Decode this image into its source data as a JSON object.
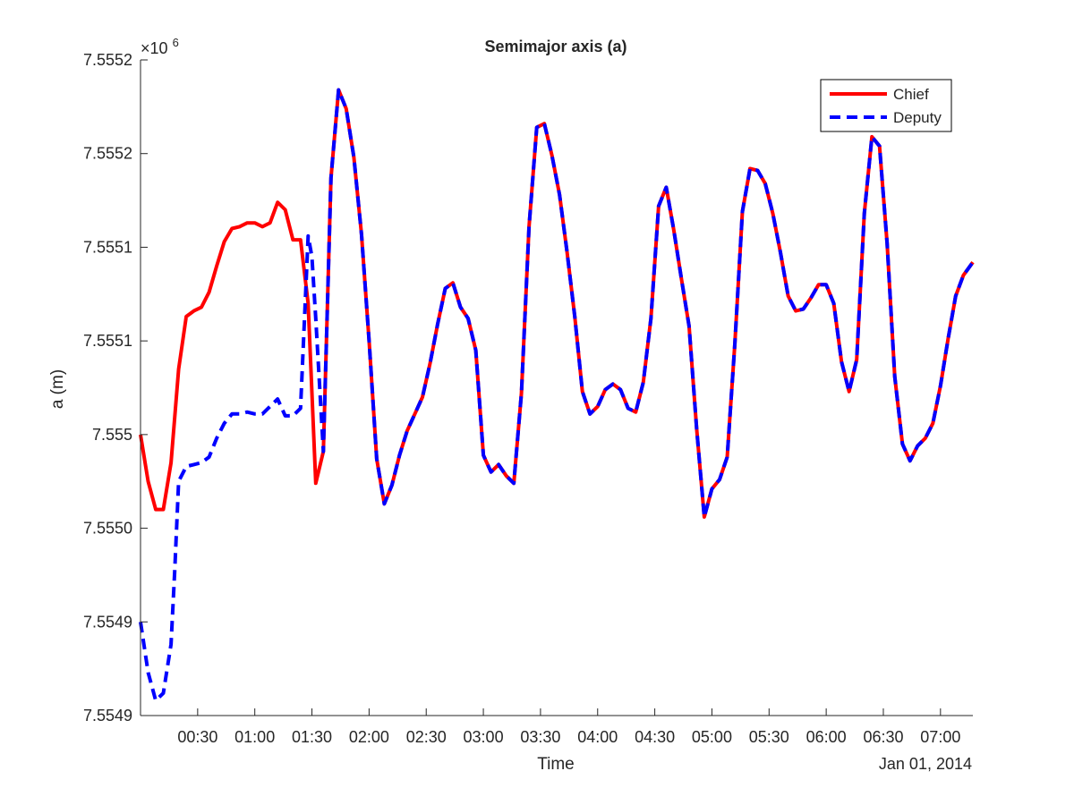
{
  "chart_data": {
    "type": "line",
    "title": "Semimajor axis (a)",
    "xlabel": "Time",
    "ylabel": "a (m)",
    "x_date_label": "Jan 01, 2014",
    "exponent_label": "×10",
    "exponent_power": "6",
    "x_unit": "minutes after 00:00",
    "xlim": [
      0,
      437
    ],
    "ylim": [
      7554850,
      7555200
    ],
    "x_tick_values": [
      30,
      60,
      90,
      120,
      150,
      180,
      210,
      240,
      270,
      300,
      330,
      360,
      390,
      420
    ],
    "x_tick_labels": [
      "00:30",
      "01:00",
      "01:30",
      "02:00",
      "02:30",
      "03:00",
      "03:30",
      "04:00",
      "04:30",
      "05:00",
      "05:30",
      "06:00",
      "06:30",
      "07:00"
    ],
    "y_tick_values": [
      7554850,
      7554900,
      7554950,
      7555000,
      7555050,
      7555100,
      7555150,
      7555200
    ],
    "y_tick_labels": [
      "7.5549",
      "7.5549",
      "7.5550",
      "7.555",
      "7.5551",
      "7.5551",
      "7.5552",
      "7.5552"
    ],
    "grid": false,
    "legend_position": "top-right",
    "series": [
      {
        "name": "Chief",
        "color": "#ff0000",
        "style": "solid",
        "x": [
          0,
          4,
          8,
          12,
          16,
          20,
          24,
          28,
          32,
          36,
          40,
          44,
          48,
          52,
          56,
          60,
          64,
          68,
          72,
          76,
          80,
          84,
          88,
          92,
          96,
          100,
          104,
          108,
          112,
          116,
          120,
          124,
          128,
          132,
          136,
          140,
          144,
          148,
          152,
          156,
          160,
          164,
          168,
          172,
          176,
          180,
          184,
          188,
          192,
          196,
          200,
          204,
          208,
          212,
          216,
          220,
          224,
          228,
          232,
          236,
          240,
          244,
          248,
          252,
          256,
          260,
          264,
          268,
          272,
          276,
          280,
          284,
          288,
          292,
          296,
          300,
          304,
          308,
          312,
          316,
          320,
          324,
          328,
          332,
          336,
          340,
          344,
          348,
          352,
          356,
          360,
          364,
          368,
          372,
          376,
          380,
          384,
          388,
          392,
          396,
          400,
          404,
          408,
          412,
          416,
          420,
          424,
          428,
          432,
          437
        ],
        "y": [
          7555000,
          7554975,
          7554960,
          7554960,
          7554985,
          7555035,
          7555063,
          7555066,
          7555068,
          7555076,
          7555090,
          7555103,
          7555110,
          7555111,
          7555113,
          7555113,
          7555111,
          7555113,
          7555124,
          7555120,
          7555104,
          7555104,
          7555070,
          7554974,
          7554991,
          7555137,
          7555184,
          7555174,
          7555148,
          7555107,
          7555050,
          7554987,
          7554963,
          7554973,
          7554989,
          7555002,
          7555011,
          7555020,
          7555038,
          7555059,
          7555078,
          7555081,
          7555068,
          7555062,
          7555045,
          7554989,
          7554980,
          7554984,
          7554978,
          7554974,
          7555022,
          7555111,
          7555164,
          7555166,
          7555149,
          7555128,
          7555097,
          7555063,
          7555023,
          7555011,
          7555015,
          7555024,
          7555027,
          7555024,
          7555014,
          7555012,
          7555028,
          7555062,
          7555122,
          7555132,
          7555109,
          7555083,
          7555058,
          7555003,
          7554956,
          7554971,
          7554976,
          7554988,
          7555048,
          7555119,
          7555142,
          7555141,
          7555134,
          7555118,
          7555097,
          7555074,
          7555066,
          7555067,
          7555073,
          7555080,
          7555080,
          7555070,
          7555039,
          7555023,
          7555040,
          7555118,
          7555159,
          7555154,
          7555102,
          7555031,
          7554995,
          7554986,
          7554994,
          7554998,
          7555006,
          7555026,
          7555051,
          7555074,
          7555085,
          7555092
        ]
      },
      {
        "name": "Deputy",
        "color": "#0000ff",
        "style": "dashed",
        "x": [
          0,
          4,
          8,
          12,
          16,
          18,
          20,
          24,
          28,
          32,
          36,
          40,
          44,
          48,
          52,
          56,
          60,
          64,
          68,
          72,
          76,
          80,
          84,
          88,
          90,
          92,
          96,
          100,
          104,
          108,
          112,
          116,
          120,
          124,
          128,
          132,
          136,
          140,
          144,
          148,
          152,
          156,
          160,
          164,
          168,
          172,
          176,
          180,
          184,
          188,
          192,
          196,
          200,
          204,
          208,
          212,
          216,
          220,
          224,
          228,
          232,
          236,
          240,
          244,
          248,
          252,
          256,
          260,
          264,
          268,
          272,
          276,
          280,
          284,
          288,
          292,
          296,
          300,
          304,
          308,
          312,
          316,
          320,
          324,
          328,
          332,
          336,
          340,
          344,
          348,
          352,
          356,
          360,
          364,
          368,
          372,
          376,
          380,
          384,
          388,
          392,
          396,
          400,
          404,
          408,
          412,
          416,
          420,
          424,
          428,
          432,
          437
        ],
        "y": [
          7554900,
          7554873,
          7554858,
          7554862,
          7554888,
          7554928,
          7554975,
          7554983,
          7554984,
          7554985,
          7554988,
          7554998,
          7555006,
          7555011,
          7555011,
          7555012,
          7555011,
          7555011,
          7555015,
          7555019,
          7555010,
          7555010,
          7555014,
          7555106,
          7555095,
          7555062,
          7554991,
          7555137,
          7555184,
          7555174,
          7555148,
          7555107,
          7555050,
          7554987,
          7554963,
          7554973,
          7554989,
          7555002,
          7555011,
          7555020,
          7555038,
          7555059,
          7555078,
          7555081,
          7555068,
          7555062,
          7555045,
          7554989,
          7554980,
          7554984,
          7554978,
          7554974,
          7555022,
          7555111,
          7555164,
          7555166,
          7555149,
          7555128,
          7555097,
          7555063,
          7555023,
          7555011,
          7555015,
          7555024,
          7555027,
          7555024,
          7555014,
          7555012,
          7555028,
          7555062,
          7555122,
          7555132,
          7555109,
          7555083,
          7555058,
          7555003,
          7554956,
          7554971,
          7554976,
          7554988,
          7555048,
          7555119,
          7555142,
          7555141,
          7555134,
          7555118,
          7555097,
          7555074,
          7555066,
          7555067,
          7555073,
          7555080,
          7555080,
          7555070,
          7555039,
          7555023,
          7555040,
          7555118,
          7555159,
          7555154,
          7555102,
          7555031,
          7554995,
          7554986,
          7554994,
          7554998,
          7555006,
          7555026,
          7555051,
          7555074,
          7555085,
          7555092
        ]
      }
    ]
  }
}
